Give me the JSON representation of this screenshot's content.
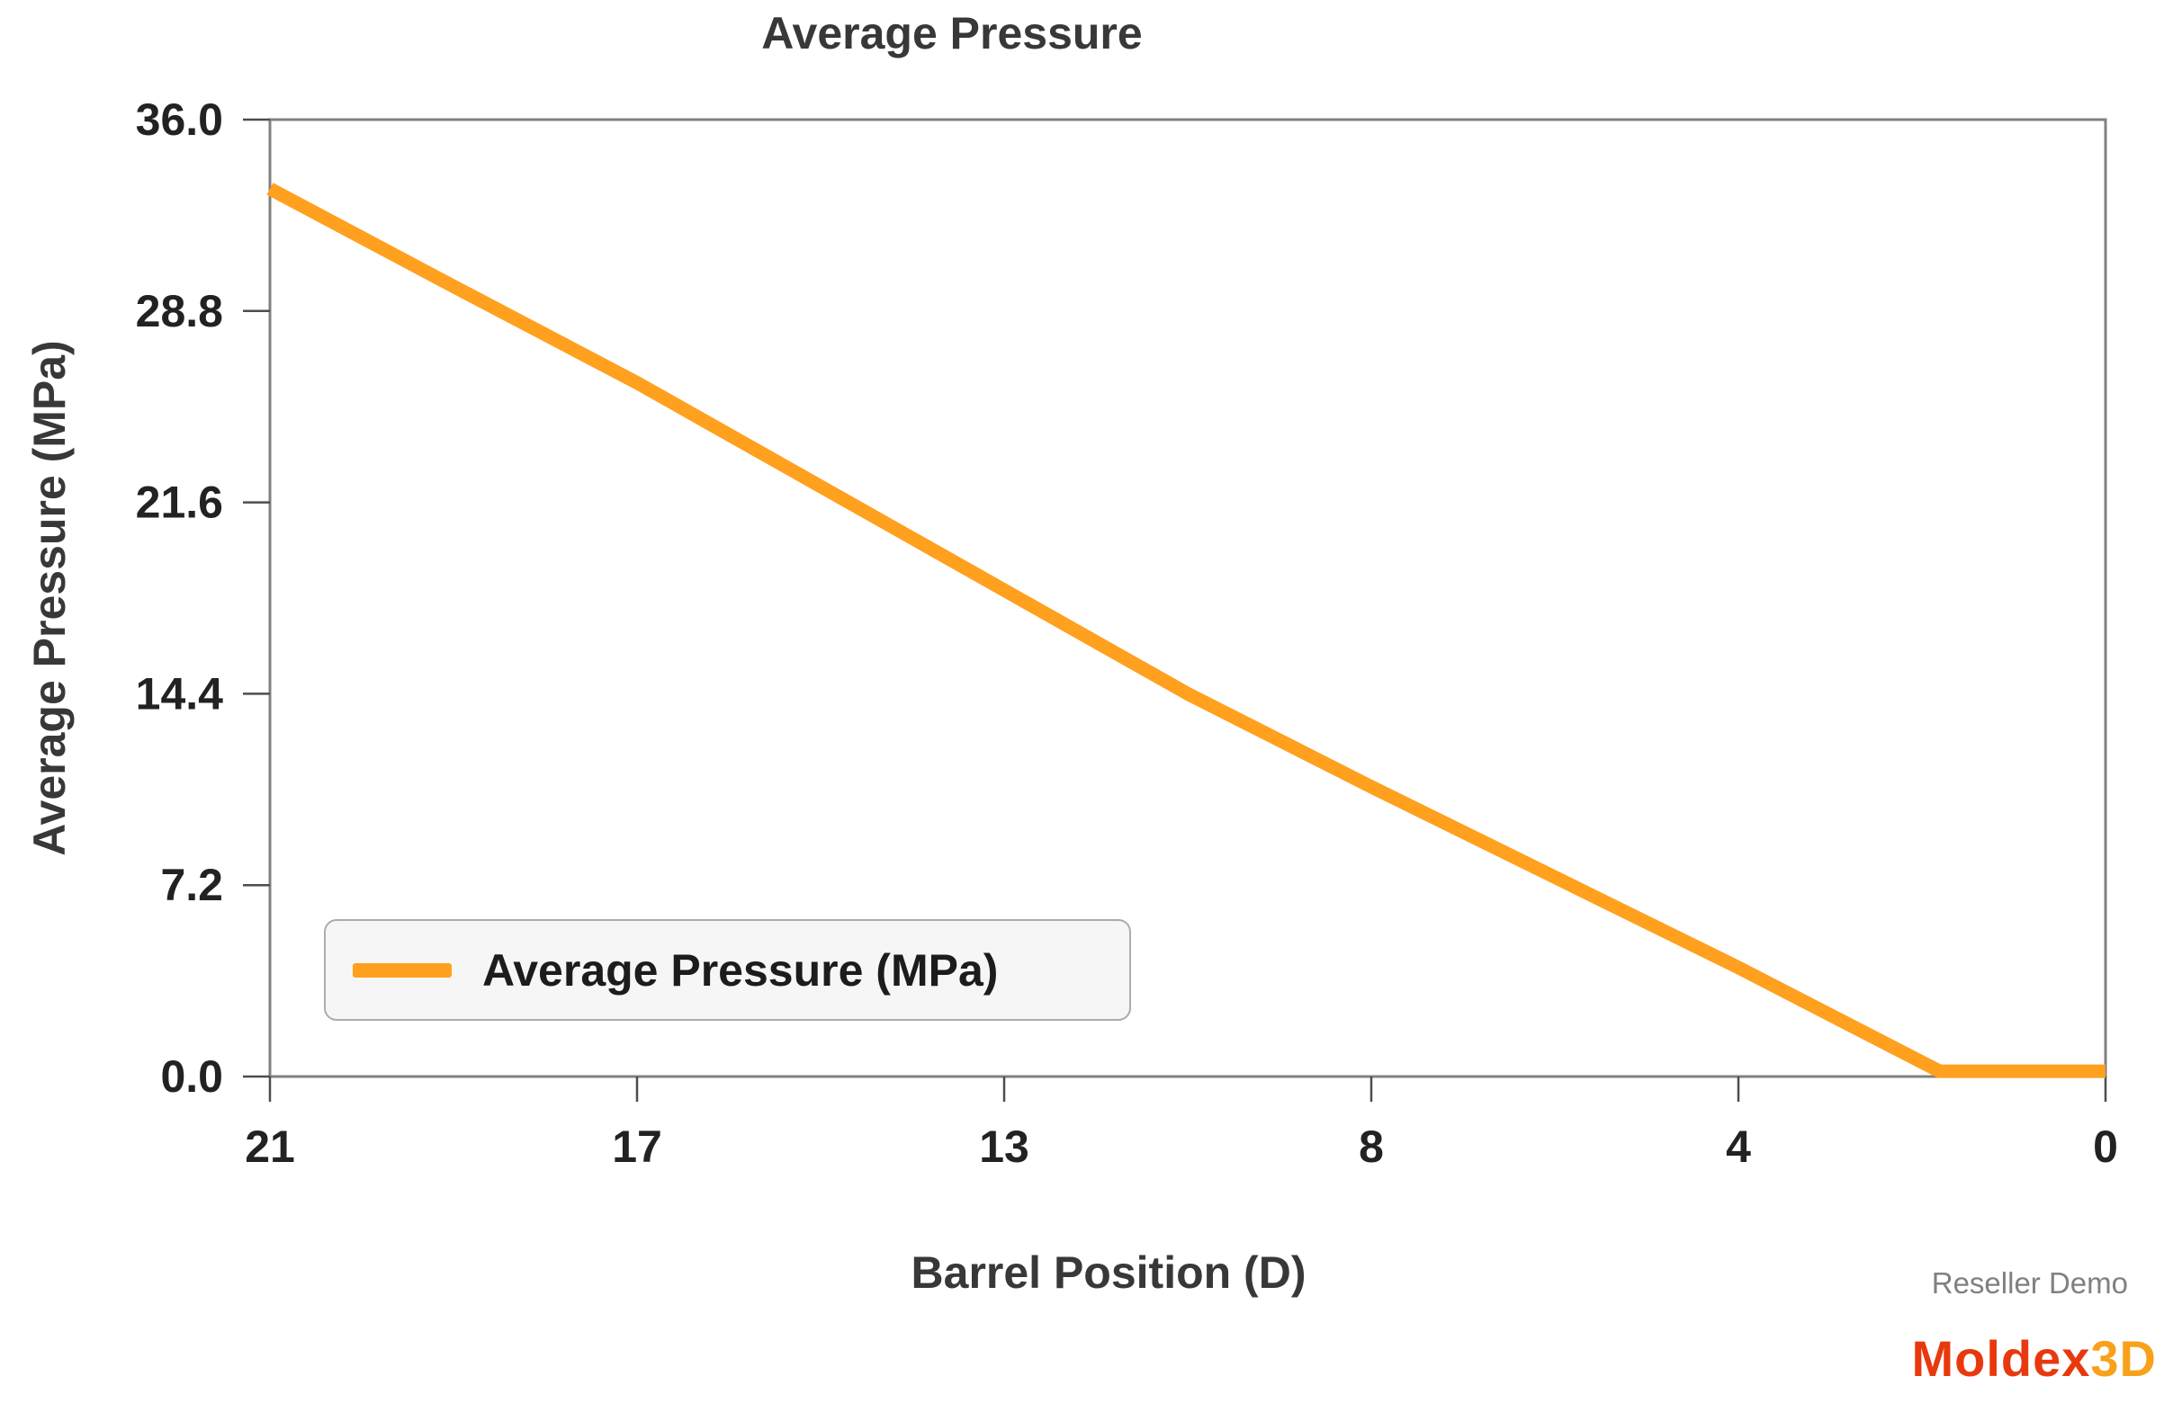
{
  "chart_data": {
    "type": "line",
    "title": "Average Pressure",
    "xlabel": "Barrel Position (D)",
    "ylabel": "Average Pressure (MPa)",
    "x_axis": {
      "left_value": 21,
      "right_value": 0,
      "reversed": true,
      "tick_values": [
        21,
        16.8,
        12.6,
        8.4,
        4.2,
        0
      ],
      "tick_labels": [
        "21",
        "17",
        "13",
        "8",
        "4",
        "0"
      ]
    },
    "y_axis": {
      "min": 0,
      "max": 36,
      "tick_values": [
        36,
        28.8,
        21.6,
        14.4,
        7.2,
        0
      ],
      "tick_labels": [
        "36.0",
        "28.8",
        "21.6",
        "14.4",
        "7.2",
        "0.0"
      ]
    },
    "grid": false,
    "legend_position": "bottom-left-inside",
    "series": [
      {
        "name": "Average Pressure (MPa)",
        "color": "#FFA01E",
        "points": [
          [
            21.0,
            33.4
          ],
          [
            19.0,
            29.9
          ],
          [
            16.8,
            26.1
          ],
          [
            14.7,
            22.2
          ],
          [
            12.6,
            18.3
          ],
          [
            10.5,
            14.4
          ],
          [
            8.4,
            10.9
          ],
          [
            6.3,
            7.5
          ],
          [
            4.2,
            4.1
          ],
          [
            1.9,
            0.2
          ],
          [
            0.0,
            0.2
          ]
        ]
      }
    ],
    "colors": {
      "plot_border": "#808080",
      "tick_mark": "#4d4d4d",
      "tick_label": "#222222",
      "title_text": "#383838"
    }
  },
  "footer": {
    "watermark": "Reseller Demo",
    "watermark_color": "#808080",
    "logo": {
      "part1": "Moldex",
      "part1_color": "#E8390E",
      "part2": "3D",
      "part2_color": "#F9A11B"
    }
  }
}
